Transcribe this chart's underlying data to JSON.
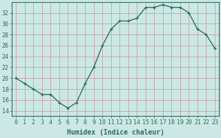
{
  "x": [
    0,
    1,
    2,
    3,
    4,
    5,
    6,
    7,
    8,
    9,
    10,
    11,
    12,
    13,
    14,
    15,
    16,
    17,
    18,
    19,
    20,
    21,
    22,
    23
  ],
  "y": [
    20,
    19,
    18,
    17,
    17,
    15.5,
    14.5,
    15.5,
    19,
    22,
    26,
    29,
    30.5,
    30.5,
    31,
    33,
    33,
    33.5,
    33,
    33,
    32,
    29,
    28,
    25.5
  ],
  "line_color": "#2d6b5e",
  "marker": "P",
  "marker_color": "#2d6b5e",
  "bg_color": "#cce8e4",
  "grid_color_major": "#c8a0a0",
  "grid_color_minor": "#d8ecea",
  "xlabel": "Humidex (Indice chaleur)",
  "ylim": [
    13,
    34
  ],
  "xlim": [
    -0.5,
    23.5
  ],
  "yticks": [
    14,
    16,
    18,
    20,
    22,
    24,
    26,
    28,
    30,
    32
  ],
  "xticks": [
    0,
    1,
    2,
    3,
    4,
    5,
    6,
    7,
    8,
    9,
    10,
    11,
    12,
    13,
    14,
    15,
    16,
    17,
    18,
    19,
    20,
    21,
    22,
    23
  ],
  "tick_label_color": "#2d6b5e",
  "axis_color": "#2d6b5e",
  "label_fontsize": 7,
  "tick_fontsize": 6,
  "linewidth": 1.0,
  "markersize": 3.0
}
